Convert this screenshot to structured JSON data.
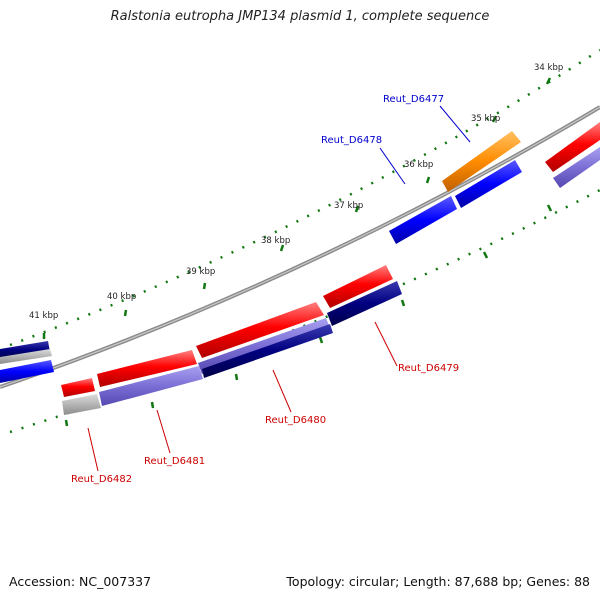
{
  "title": "Ralstonia eutropha JMP134 plasmid 1, complete sequence",
  "footer": {
    "accession": "Accession: NC_007337",
    "topology": "Topology: circular; Length: 87,688 bp; Genes: 88"
  },
  "scale_labels": [
    "34 kbp",
    "35 kbp",
    "36 kbp",
    "37 kbp",
    "38 kbp",
    "39 kbp",
    "40 kbp",
    "41 kbp"
  ],
  "genes": {
    "forward": [
      {
        "id": "Reut_D6477",
        "color": "#0000cc"
      },
      {
        "id": "Reut_D6478",
        "color": "#0000cc"
      }
    ],
    "reverse": [
      {
        "id": "Reut_D6479",
        "color": "#cc0000"
      },
      {
        "id": "Reut_D6480",
        "color": "#cc0000"
      },
      {
        "id": "Reut_D6481",
        "color": "#cc0000"
      },
      {
        "id": "Reut_D6482",
        "color": "#cc0000"
      }
    ]
  },
  "colors": {
    "backbone": "#888888",
    "ticks": "#117711",
    "red": "#ff0000",
    "blue": "#0000ff",
    "orange": "#ff8c00",
    "navy": "#000080",
    "lavender": "#7b6fd6",
    "gray": "#b0b0b0"
  }
}
